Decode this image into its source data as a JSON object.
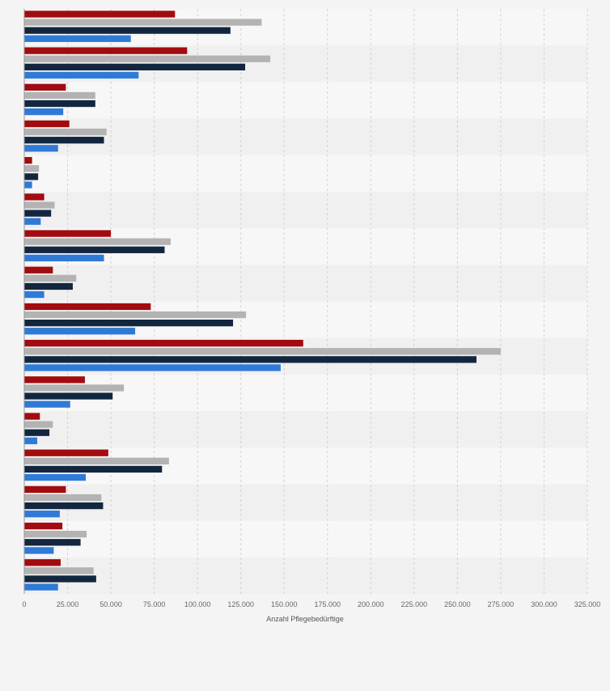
{
  "page": {
    "background": "#f4f4f4"
  },
  "chart_data": {
    "type": "bar",
    "orientation": "horizontal",
    "xlabel": "Anzahl Pflegebedürftige",
    "ylabel": "",
    "xlim": [
      0,
      325000
    ],
    "x_ticks": [
      0,
      25000,
      50000,
      75000,
      100000,
      125000,
      150000,
      175000,
      200000,
      225000,
      250000,
      275000,
      300000,
      325000
    ],
    "x_tick_labels": [
      "0",
      "25.000",
      "50.000",
      "75.000",
      "100.000",
      "125.000",
      "150.000",
      "175.000",
      "200.000",
      "225.000",
      "250.000",
      "275.000",
      "300.000",
      "325.000"
    ],
    "grid": true,
    "category_count": 16,
    "series": [
      {
        "color": "#a20b10",
        "values": [
          87000,
          94000,
          24000,
          26000,
          4500,
          11500,
          50000,
          16500,
          73000,
          161000,
          35000,
          9000,
          48500,
          24000,
          22000,
          21000
        ]
      },
      {
        "color": "#b3b3b3",
        "values": [
          137000,
          142000,
          41000,
          47500,
          8500,
          17500,
          84500,
          30000,
          128000,
          275000,
          57500,
          16500,
          83500,
          44500,
          36000,
          40000
        ]
      },
      {
        "color": "#13263f",
        "values": [
          119000,
          127500,
          41000,
          46000,
          8000,
          15500,
          81000,
          28000,
          120500,
          261000,
          51000,
          14500,
          79500,
          45500,
          32500,
          41500
        ]
      },
      {
        "color": "#2f7ad7",
        "values": [
          61500,
          66000,
          22500,
          19500,
          4500,
          9500,
          46000,
          11500,
          64000,
          148000,
          26500,
          7500,
          35500,
          20500,
          17000,
          19500
        ]
      }
    ]
  }
}
